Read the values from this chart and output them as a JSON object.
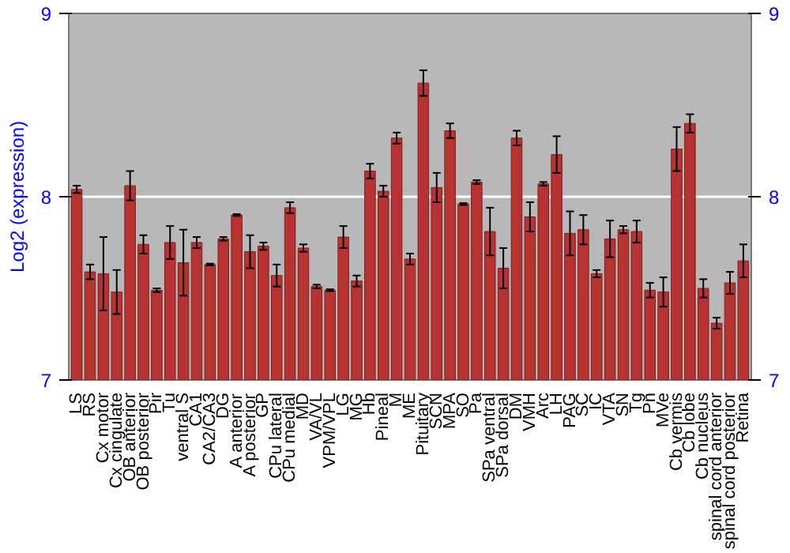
{
  "chart_data": {
    "type": "bar",
    "ylabel": "Log2 (expression)",
    "categories": [
      "LS",
      "RS",
      "Cx motor",
      "Cx cingulate",
      "OB anterior",
      "OB posterior",
      "Pir",
      "Tu",
      "ventral S",
      "CA1",
      "CA2/CA3",
      "DG",
      "A anterior",
      "A posterior",
      "GP",
      "CPu lateral",
      "CPu medial",
      "MD",
      "VA/VL",
      "VPM/VPL",
      "LG",
      "MG",
      "Hb",
      "Pineal",
      "M",
      "ME",
      "Pituitary",
      "SCN",
      "MPA",
      "SO",
      "Pa",
      "SPa ventral",
      "SPa dorsal",
      "DM",
      "VMH",
      "Arc",
      "LH",
      "PAG",
      "SC",
      "IC",
      "VTA",
      "SN",
      "Tg",
      "Pn",
      "MVe",
      "Cb vermis",
      "Cb lobe",
      "Cb nucleus",
      "spinal cord anterior",
      "spinal cord posterior",
      "Retina"
    ],
    "values": [
      8.04,
      7.59,
      7.58,
      7.48,
      8.06,
      7.74,
      7.49,
      7.75,
      7.64,
      7.75,
      7.63,
      7.77,
      7.9,
      7.7,
      7.73,
      7.57,
      7.94,
      7.72,
      7.51,
      7.49,
      7.78,
      7.54,
      8.14,
      8.03,
      8.32,
      7.66,
      8.62,
      8.05,
      8.36,
      7.96,
      8.08,
      7.81,
      7.61,
      8.32,
      7.89,
      8.07,
      8.23,
      7.8,
      7.82,
      7.58,
      7.77,
      7.82,
      7.81,
      7.49,
      7.48,
      8.26,
      8.4,
      7.5,
      7.31,
      7.53,
      7.65
    ],
    "errors": [
      0.02,
      0.04,
      0.2,
      0.12,
      0.08,
      0.05,
      0.01,
      0.09,
      0.18,
      0.03,
      0.005,
      0.01,
      0.005,
      0.09,
      0.02,
      0.06,
      0.03,
      0.02,
      0.01,
      0.005,
      0.06,
      0.03,
      0.04,
      0.03,
      0.03,
      0.03,
      0.07,
      0.08,
      0.04,
      0.005,
      0.01,
      0.13,
      0.11,
      0.04,
      0.08,
      0.01,
      0.1,
      0.12,
      0.08,
      0.02,
      0.1,
      0.02,
      0.06,
      0.04,
      0.08,
      0.12,
      0.05,
      0.05,
      0.03,
      0.06,
      0.09
    ],
    "color": "#b83232",
    "ylim": [
      7,
      9
    ],
    "yticks": [
      7,
      8,
      9
    ],
    "y2lim": [
      7,
      9
    ],
    "y2ticks": [
      7,
      8,
      9
    ],
    "grid": "y"
  }
}
